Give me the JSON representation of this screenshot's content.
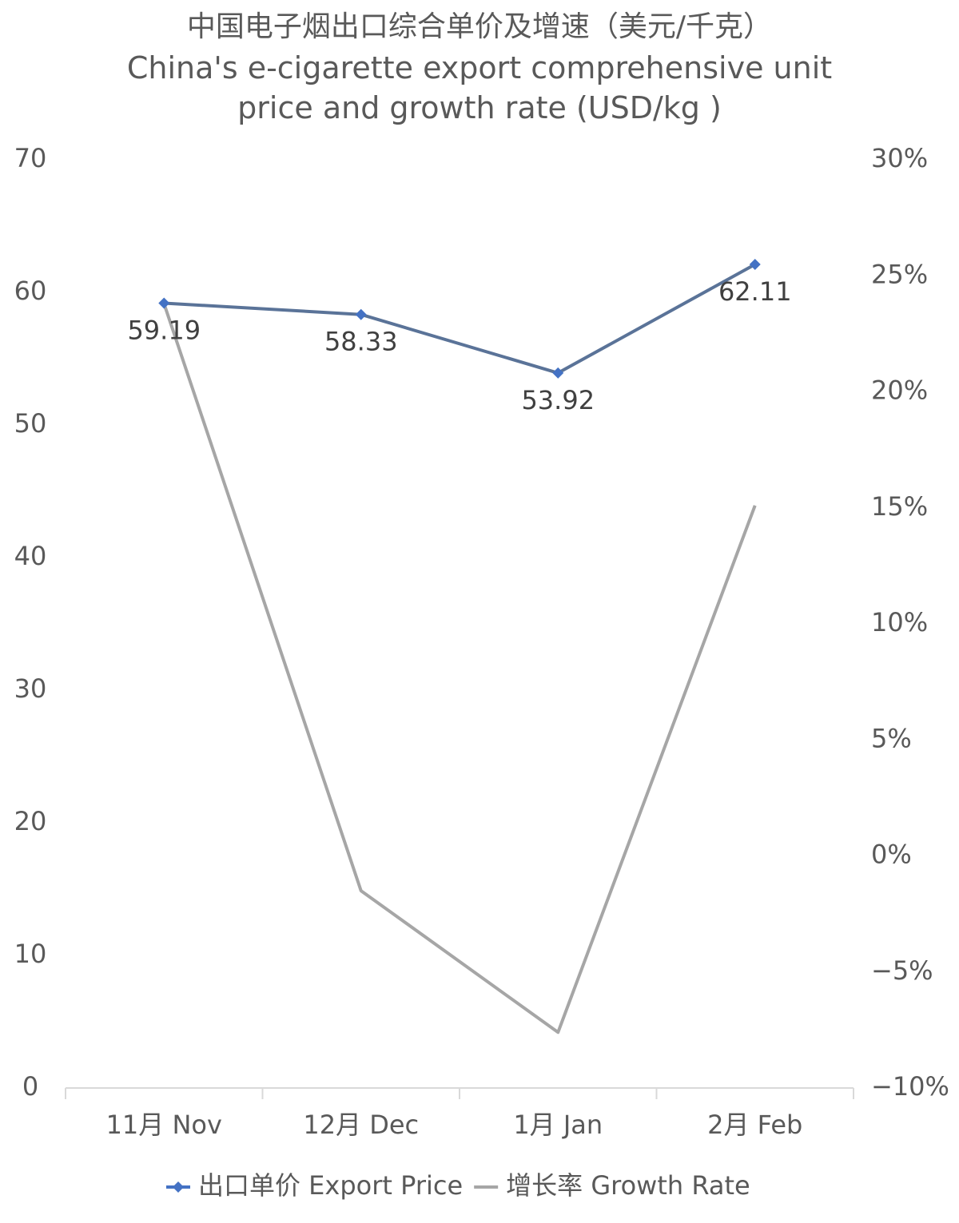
{
  "chart_data": {
    "type": "line",
    "title": "中国电子烟出口综合单价及增速（美元/千克）",
    "subtitle": "China's e-cigarette export comprehensive unit price and growth rate (USD/kg )",
    "categories": [
      "11月 Nov",
      "12月 Dec",
      "1月 Jan",
      "2月 Feb"
    ],
    "series": [
      {
        "name": "出口单价 Export Price",
        "color": "#5a7398",
        "marker_color": "#4472c4",
        "values": [
          59.19,
          58.33,
          53.92,
          62.11
        ]
      },
      {
        "name": "增长率 Growth Rate",
        "color": "#a6a6a6",
        "axis": "y2",
        "values": [
          23.8,
          -1.5,
          -7.6,
          15.1
        ]
      }
    ],
    "ylim": [
      0,
      70
    ],
    "yticks": [
      0,
      10,
      20,
      30,
      40,
      50,
      60,
      70
    ],
    "y2lim": [
      -10,
      30
    ],
    "y2ticks": [
      {
        "value": -10,
        "label": "−10%"
      },
      {
        "value": -5,
        "label": "−5%"
      },
      {
        "value": 0,
        "label": "0%"
      },
      {
        "value": 5,
        "label": "5%"
      },
      {
        "value": 10,
        "label": "10%"
      },
      {
        "value": 15,
        "label": "15%"
      },
      {
        "value": 20,
        "label": "20%"
      },
      {
        "value": 25,
        "label": "25%"
      },
      {
        "value": 30,
        "label": "30%"
      }
    ],
    "legend": "bottom"
  }
}
